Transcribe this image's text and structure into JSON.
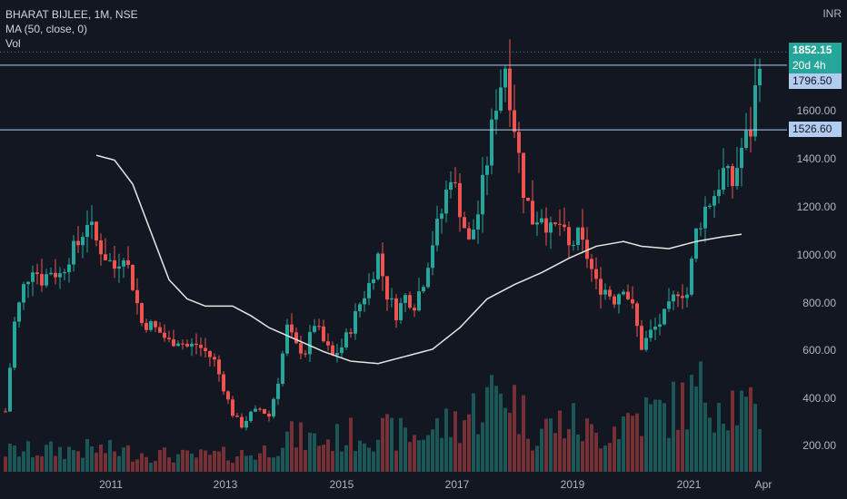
{
  "legend": {
    "symbol": "BHARAT BIJLEE, 1M, NSE",
    "ma": "MA (50, close, 0)",
    "vol": "Vol"
  },
  "currency": "INR",
  "price_labels": {
    "last": "1852.15",
    "countdown": "20d 4h",
    "level_high": "1796.50",
    "level_low": "1526.60"
  },
  "colors": {
    "background": "#131722",
    "up": "#26a69a",
    "down": "#ef5350",
    "ma_line": "#e6e6e6",
    "level_line": "#b2ccf0"
  },
  "chart_data": {
    "type": "candlestick",
    "interval": "1M",
    "y_ticks": [
      "200.00",
      "400.00",
      "600.00",
      "800.00",
      "1000.00",
      "1200.00",
      "1400.00",
      "1600.00"
    ],
    "x_ticks": [
      "2011",
      "2013",
      "2015",
      "2017",
      "2019",
      "2021",
      "Apr"
    ],
    "horizontal_levels": [
      1796.5,
      1526.6
    ],
    "last_price": 1852.15,
    "ylim": [
      120,
      2030
    ],
    "grid": false,
    "keypoints": [
      [
        0,
        350
      ],
      [
        2,
        720
      ],
      [
        4,
        870
      ],
      [
        6,
        960
      ],
      [
        8,
        900
      ],
      [
        10,
        940
      ],
      [
        12,
        920
      ],
      [
        14,
        1000
      ],
      [
        16,
        1050
      ],
      [
        18,
        1150
      ],
      [
        20,
        1060
      ],
      [
        22,
        1000
      ],
      [
        24,
        950
      ],
      [
        26,
        1020
      ],
      [
        28,
        880
      ],
      [
        30,
        720
      ],
      [
        32,
        710
      ],
      [
        34,
        680
      ],
      [
        36,
        640
      ],
      [
        38,
        650
      ],
      [
        40,
        620
      ],
      [
        42,
        630
      ],
      [
        44,
        600
      ],
      [
        46,
        560
      ],
      [
        48,
        450
      ],
      [
        50,
        340
      ],
      [
        52,
        290
      ],
      [
        54,
        340
      ],
      [
        56,
        360
      ],
      [
        58,
        330
      ],
      [
        60,
        480
      ],
      [
        62,
        700
      ],
      [
        64,
        620
      ],
      [
        66,
        600
      ],
      [
        68,
        720
      ],
      [
        70,
        640
      ],
      [
        72,
        580
      ],
      [
        74,
        620
      ],
      [
        76,
        700
      ],
      [
        78,
        800
      ],
      [
        80,
        880
      ],
      [
        82,
        1000
      ],
      [
        84,
        840
      ],
      [
        86,
        760
      ],
      [
        88,
        830
      ],
      [
        90,
        800
      ],
      [
        92,
        900
      ],
      [
        94,
        1060
      ],
      [
        96,
        1180
      ],
      [
        98,
        1350
      ],
      [
        100,
        1200
      ],
      [
        102,
        1050
      ],
      [
        104,
        1180
      ],
      [
        106,
        1400
      ],
      [
        108,
        1650
      ],
      [
        110,
        1800
      ],
      [
        112,
        1550
      ],
      [
        114,
        1280
      ],
      [
        116,
        1150
      ],
      [
        118,
        1180
      ],
      [
        120,
        1100
      ],
      [
        122,
        1130
      ],
      [
        124,
        1030
      ],
      [
        126,
        1080
      ],
      [
        128,
        1000
      ],
      [
        130,
        880
      ],
      [
        132,
        860
      ],
      [
        134,
        820
      ],
      [
        136,
        880
      ],
      [
        138,
        780
      ],
      [
        140,
        620
      ],
      [
        142,
        680
      ],
      [
        144,
        720
      ],
      [
        146,
        780
      ],
      [
        148,
        860
      ],
      [
        150,
        840
      ],
      [
        152,
        1100
      ],
      [
        154,
        1200
      ],
      [
        156,
        1260
      ],
      [
        158,
        1350
      ],
      [
        160,
        1300
      ],
      [
        162,
        1450
      ],
      [
        164,
        1526
      ],
      [
        166,
        1852
      ]
    ],
    "ma_keypoints": [
      [
        20,
        1420
      ],
      [
        24,
        1400
      ],
      [
        28,
        1300
      ],
      [
        32,
        1100
      ],
      [
        36,
        900
      ],
      [
        40,
        820
      ],
      [
        44,
        790
      ],
      [
        50,
        790
      ],
      [
        54,
        750
      ],
      [
        58,
        700
      ],
      [
        64,
        650
      ],
      [
        70,
        600
      ],
      [
        76,
        560
      ],
      [
        82,
        550
      ],
      [
        88,
        580
      ],
      [
        94,
        610
      ],
      [
        100,
        700
      ],
      [
        106,
        820
      ],
      [
        112,
        880
      ],
      [
        118,
        930
      ],
      [
        124,
        990
      ],
      [
        130,
        1040
      ],
      [
        136,
        1060
      ],
      [
        140,
        1040
      ],
      [
        146,
        1030
      ],
      [
        152,
        1060
      ],
      [
        158,
        1080
      ],
      [
        162,
        1090
      ]
    ],
    "volume_keypoints": [
      [
        0,
        0.2
      ],
      [
        20,
        0.22
      ],
      [
        40,
        0.15
      ],
      [
        56,
        0.18
      ],
      [
        62,
        0.35
      ],
      [
        70,
        0.3
      ],
      [
        80,
        0.4
      ],
      [
        90,
        0.35
      ],
      [
        100,
        0.5
      ],
      [
        106,
        0.7
      ],
      [
        110,
        0.85
      ],
      [
        116,
        0.4
      ],
      [
        124,
        0.5
      ],
      [
        130,
        0.35
      ],
      [
        138,
        0.55
      ],
      [
        146,
        0.6
      ],
      [
        154,
        0.8
      ],
      [
        160,
        0.7
      ],
      [
        166,
        0.5
      ]
    ]
  }
}
